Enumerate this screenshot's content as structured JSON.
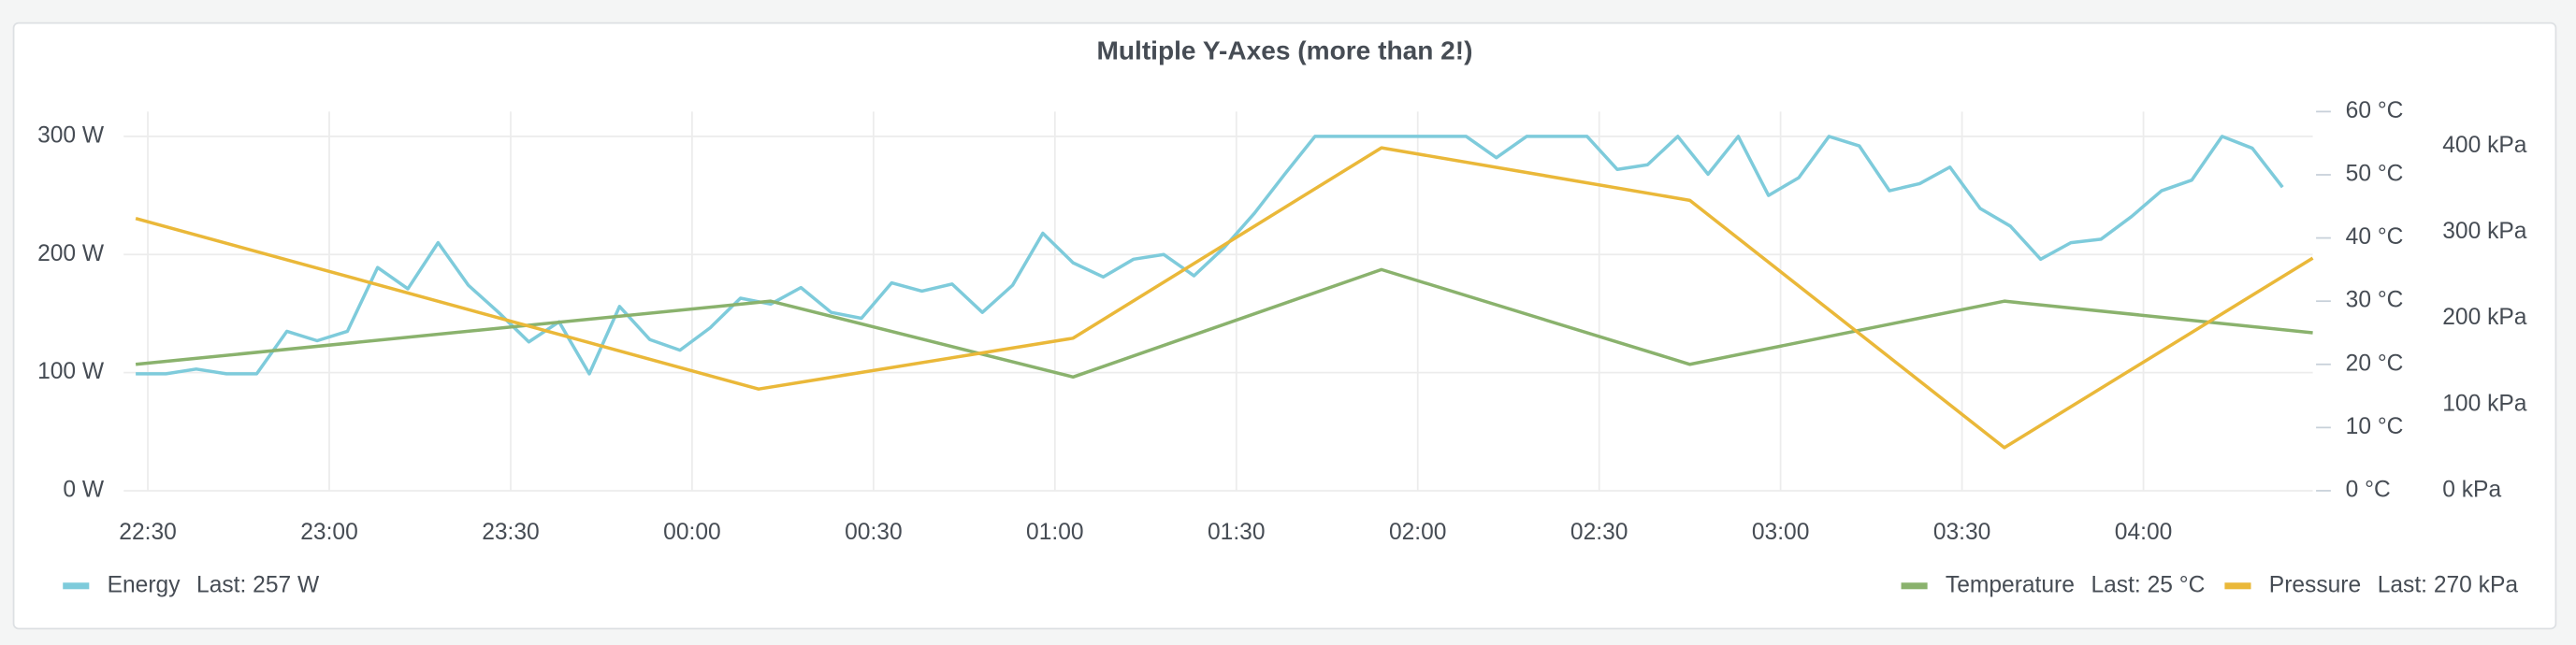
{
  "chart_data": {
    "type": "line",
    "title": "Multiple Y-Axes (more than 2!)",
    "legend": "bottom",
    "grid": true,
    "xlim": [
      "22:26",
      "04:28"
    ],
    "xticks": [
      "22:30",
      "23:00",
      "23:30",
      "00:00",
      "00:30",
      "01:00",
      "01:30",
      "02:00",
      "02:30",
      "03:00",
      "03:30",
      "04:00"
    ],
    "ylim": [
      0,
      321
    ],
    "yticks": [
      {
        "value": 0,
        "label": "0 W"
      },
      {
        "value": 100,
        "label": "100 W"
      },
      {
        "value": 200,
        "label": "200 W"
      },
      {
        "value": 300,
        "label": "300 W"
      }
    ],
    "y2lim": [
      0,
      60
    ],
    "y2ticks": [
      {
        "value": 0,
        "label": "0 °C"
      },
      {
        "value": 10,
        "label": "10 °C"
      },
      {
        "value": 20,
        "label": "20 °C"
      },
      {
        "value": 30,
        "label": "30 °C"
      },
      {
        "value": 40,
        "label": "40 °C"
      },
      {
        "value": 50,
        "label": "50 °C"
      },
      {
        "value": 60,
        "label": "60 °C"
      }
    ],
    "y3lim": [
      0,
      440
    ],
    "y3ticks": [
      {
        "value": 0,
        "label": "0 kPa"
      },
      {
        "value": 100,
        "label": "100 kPa"
      },
      {
        "value": 200,
        "label": "200 kPa"
      },
      {
        "value": 300,
        "label": "300 kPa"
      },
      {
        "value": 400,
        "label": "400 kPa"
      }
    ],
    "series": [
      {
        "name": "Energy",
        "color": "#7ecbdb",
        "axis": "y",
        "legend_value": "Last: 257 W",
        "x": [
          "22:28",
          "22:33",
          "22:38",
          "22:43",
          "22:48",
          "22:53",
          "22:58",
          "23:03",
          "23:08",
          "23:13",
          "23:18",
          "23:23",
          "23:28",
          "23:33",
          "23:38",
          "23:43",
          "23:48",
          "23:53",
          "23:58",
          "00:03",
          "00:08",
          "00:13",
          "00:18",
          "00:23",
          "00:28",
          "00:33",
          "00:38",
          "00:43",
          "00:48",
          "00:53",
          "00:58",
          "01:03",
          "01:08",
          "01:13",
          "01:18",
          "01:23",
          "01:28",
          "01:33",
          "01:38",
          "01:43",
          "01:48",
          "01:53",
          "01:58",
          "02:03",
          "02:08",
          "02:13",
          "02:18",
          "02:23",
          "02:28",
          "02:33",
          "02:38",
          "02:43",
          "02:48",
          "02:53",
          "02:58",
          "03:03",
          "03:08",
          "03:13",
          "03:18",
          "03:23",
          "03:28",
          "03:33",
          "03:38",
          "03:43",
          "03:48",
          "03:53",
          "03:58",
          "04:03",
          "04:08",
          "04:13",
          "04:18",
          "04:23"
        ],
        "values": [
          99,
          99,
          103,
          99,
          99,
          135,
          127,
          135,
          189,
          171,
          210,
          174,
          151,
          126,
          143,
          99,
          156,
          128,
          119,
          138,
          163,
          158,
          172,
          151,
          146,
          176,
          169,
          175,
          151,
          174,
          218,
          193,
          181,
          196,
          200,
          182,
          206,
          235,
          268,
          300,
          300,
          300,
          300,
          300,
          300,
          282,
          300,
          300,
          300,
          272,
          276,
          300,
          268,
          300,
          250,
          265,
          300,
          292,
          254,
          260,
          274,
          239,
          224,
          196,
          210,
          213,
          232,
          254,
          263,
          300,
          290,
          257
        ]
      },
      {
        "name": "Temperature",
        "color": "#8ab26d",
        "axis": "y2",
        "legend_value": "Last: 25 °C",
        "x": [
          "22:28",
          "00:13",
          "01:03",
          "01:54",
          "02:45",
          "03:37",
          "04:28"
        ],
        "values": [
          20,
          30,
          18,
          35,
          20,
          30,
          25
        ]
      },
      {
        "name": "Pressure",
        "color": "#eab839",
        "axis": "y3",
        "legend_value": "Last: 270 kPa",
        "x": [
          "22:28",
          "00:11",
          "01:03",
          "01:54",
          "02:45",
          "03:37",
          "04:28"
        ],
        "values": [
          316,
          118,
          177,
          398,
          337,
          50,
          270
        ]
      }
    ]
  }
}
